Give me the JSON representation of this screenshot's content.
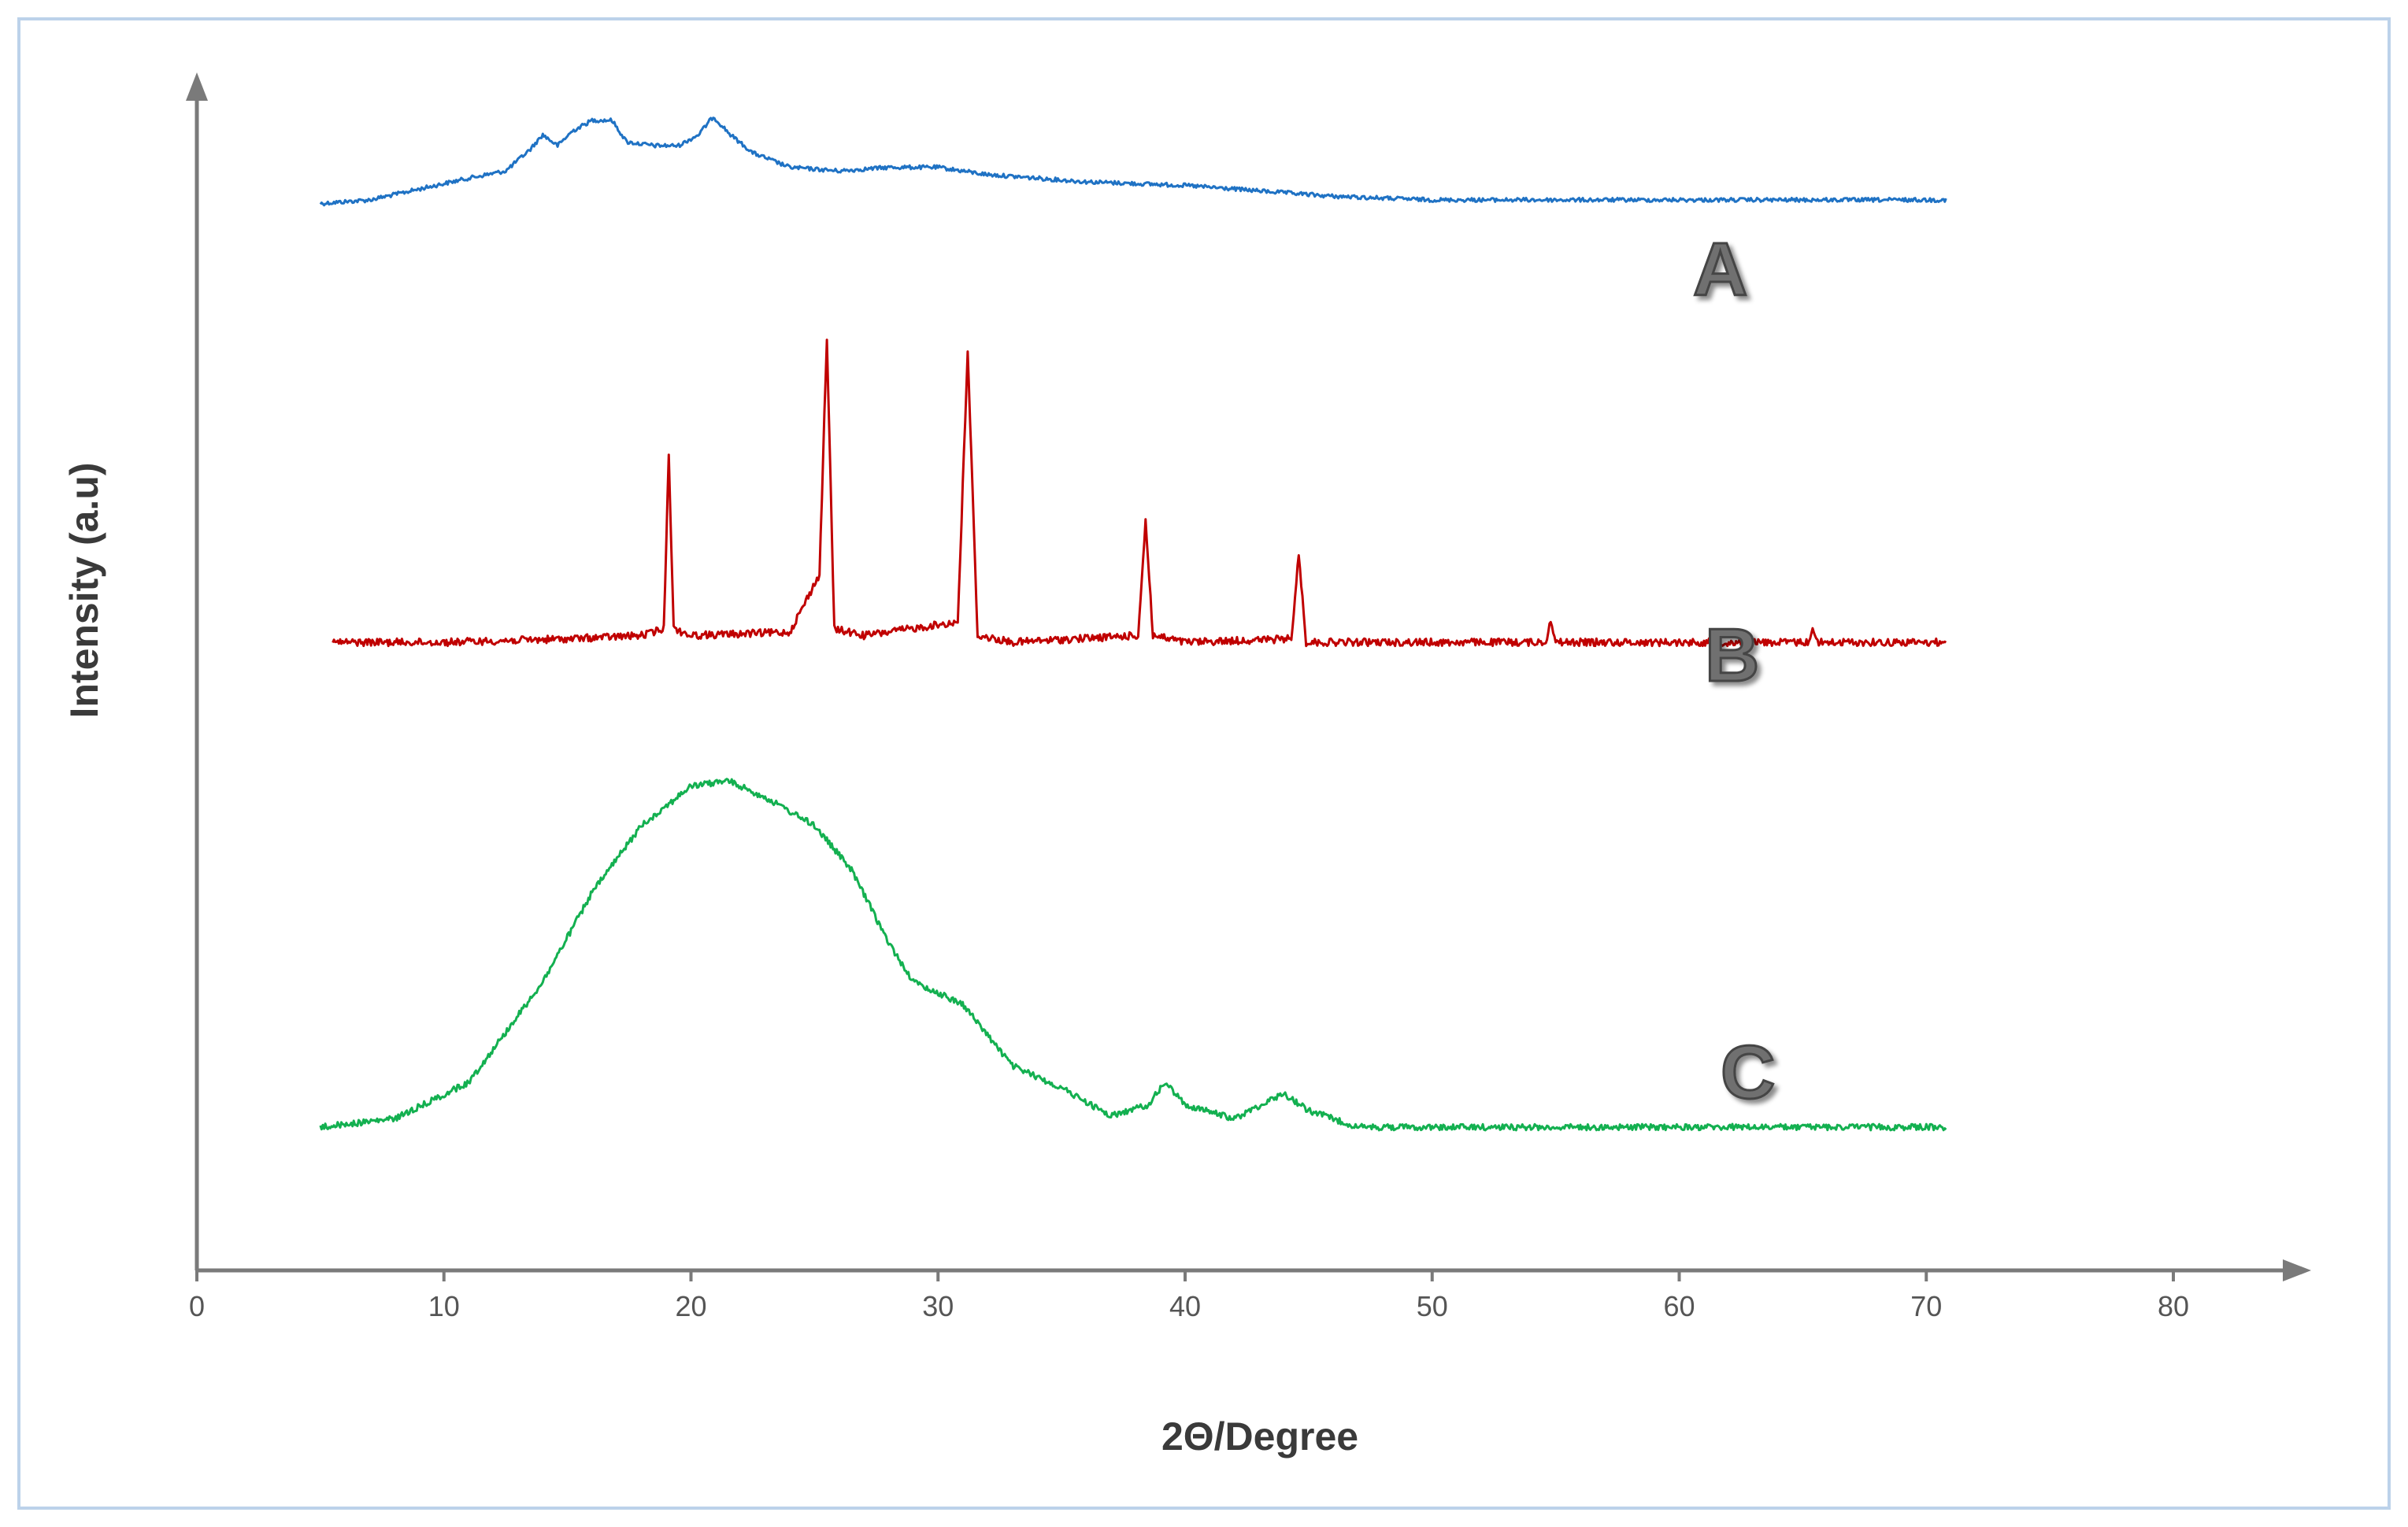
{
  "chart_data": {
    "type": "line",
    "title": "",
    "xlabel": "2Θ/Degree",
    "ylabel": "Intensity (a.u)",
    "xlim": [
      0,
      85
    ],
    "xticks": [
      0,
      10,
      20,
      30,
      40,
      50,
      60,
      70,
      80
    ],
    "xtick_labels": [
      "0",
      "10",
      "20",
      "30",
      "40",
      "50",
      "60",
      "70",
      "80"
    ],
    "y_ticks_shown": false,
    "grid": false,
    "legend": "none",
    "series": [
      {
        "name": "A",
        "color": "#1f72c4",
        "x": [
          5,
          7,
          9,
          11,
          12.5,
          13.5,
          14,
          14.6,
          15.2,
          16,
          16.8,
          17.4,
          18.5,
          19.5,
          20.3,
          20.9,
          21.6,
          22.5,
          24,
          26,
          28,
          30,
          32,
          34,
          36,
          38,
          40,
          42,
          44,
          46,
          48,
          50,
          55,
          60,
          65,
          70.8
        ],
        "y": [
          34,
          35,
          38,
          41,
          43,
          49,
          53,
          50,
          54,
          57,
          57,
          51,
          50,
          50,
          53,
          58,
          53,
          48,
          44,
          43,
          44,
          44,
          42,
          41,
          40,
          39.5,
          39,
          38,
          37,
          36,
          35.5,
          35,
          35,
          35,
          35,
          35
        ]
      },
      {
        "name": "B",
        "color": "#c00000",
        "x": [
          5.5,
          10,
          15,
          18,
          18.9,
          19.1,
          19.3,
          20,
          24,
          25.2,
          25.5,
          25.8,
          27,
          30.8,
          31.2,
          31.6,
          33,
          38.1,
          38.4,
          38.7,
          40,
          44.3,
          44.6,
          44.9,
          50,
          54.6,
          54.8,
          55,
          60,
          65.2,
          65.4,
          65.6,
          70.8
        ],
        "y": [
          10,
          10,
          10.5,
          11,
          12,
          38,
          12,
          11,
          11.5,
          20,
          55,
          12,
          11,
          13,
          53,
          11,
          10,
          11,
          28,
          11,
          10,
          10.5,
          23,
          10,
          10,
          10,
          13.5,
          10,
          10,
          10,
          12,
          10,
          10
        ]
      },
      {
        "name": "C",
        "color": "#13b050",
        "x": [
          5,
          8,
          11,
          14,
          16,
          18,
          20,
          21.5,
          23,
          25,
          26.5,
          28,
          29,
          31,
          33,
          35,
          37,
          38.5,
          39.2,
          40,
          42,
          43.5,
          44,
          45,
          47,
          50,
          55,
          60,
          65,
          70.8
        ],
        "y": [
          0,
          1.5,
          8,
          26,
          42,
          54,
          61,
          62,
          59,
          54,
          46,
          33,
          26,
          22,
          11,
          7,
          2,
          4,
          8,
          4,
          1.5,
          5,
          6,
          3,
          0,
          0,
          0,
          0,
          0,
          0
        ]
      }
    ]
  }
}
